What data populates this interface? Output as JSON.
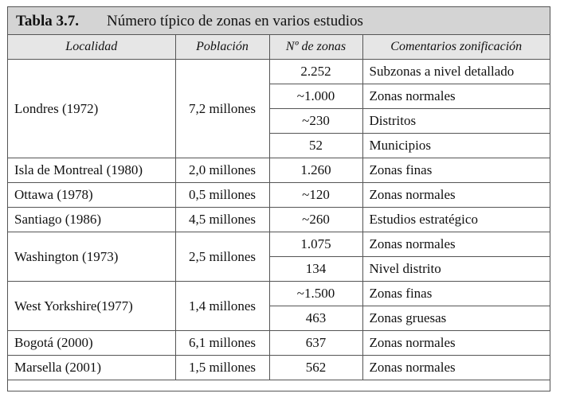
{
  "title": {
    "label": "Tabla 3.7.",
    "text": "Número típico de zonas en varios estudios"
  },
  "headers": [
    "Localidad",
    "Población",
    "Nº de zonas",
    "Comentarios zonificación"
  ],
  "groups": [
    {
      "locality": "Londres (1972)",
      "population": "7,2 millones",
      "rows": [
        {
          "zones": "2.252",
          "comment": "Subzonas a nivel detallado"
        },
        {
          "zones": "~1.000",
          "comment": "Zonas normales"
        },
        {
          "zones": "~230",
          "comment": "Distritos"
        },
        {
          "zones": "52",
          "comment": "Municipios"
        }
      ]
    },
    {
      "locality": "Isla de Montreal (1980)",
      "population": "2,0 millones",
      "rows": [
        {
          "zones": "1.260",
          "comment": "Zonas finas"
        }
      ]
    },
    {
      "locality": "Ottawa (1978)",
      "population": "0,5 millones",
      "rows": [
        {
          "zones": "~120",
          "comment": "Zonas normales"
        }
      ]
    },
    {
      "locality": "Santiago (1986)",
      "population": "4,5 millones",
      "rows": [
        {
          "zones": "~260",
          "comment": "Estudios estratégico"
        }
      ]
    },
    {
      "locality": "Washington (1973)",
      "population": "2,5 millones",
      "rows": [
        {
          "zones": "1.075",
          "comment": "Zonas normales"
        },
        {
          "zones": "134",
          "comment": "Nivel distrito"
        }
      ]
    },
    {
      "locality": "West Yorkshire(1977)",
      "population": "1,4 millones",
      "rows": [
        {
          "zones": "~1.500",
          "comment": "Zonas finas"
        },
        {
          "zones": "463",
          "comment": "Zonas gruesas"
        }
      ]
    },
    {
      "locality": "Bogotá (2000)",
      "population": "6,1 millones",
      "rows": [
        {
          "zones": "637",
          "comment": "Zonas normales"
        }
      ]
    },
    {
      "locality": "Marsella (2001)",
      "population": "1,5 millones",
      "rows": [
        {
          "zones": "562",
          "comment": "Zonas normales"
        }
      ]
    }
  ]
}
